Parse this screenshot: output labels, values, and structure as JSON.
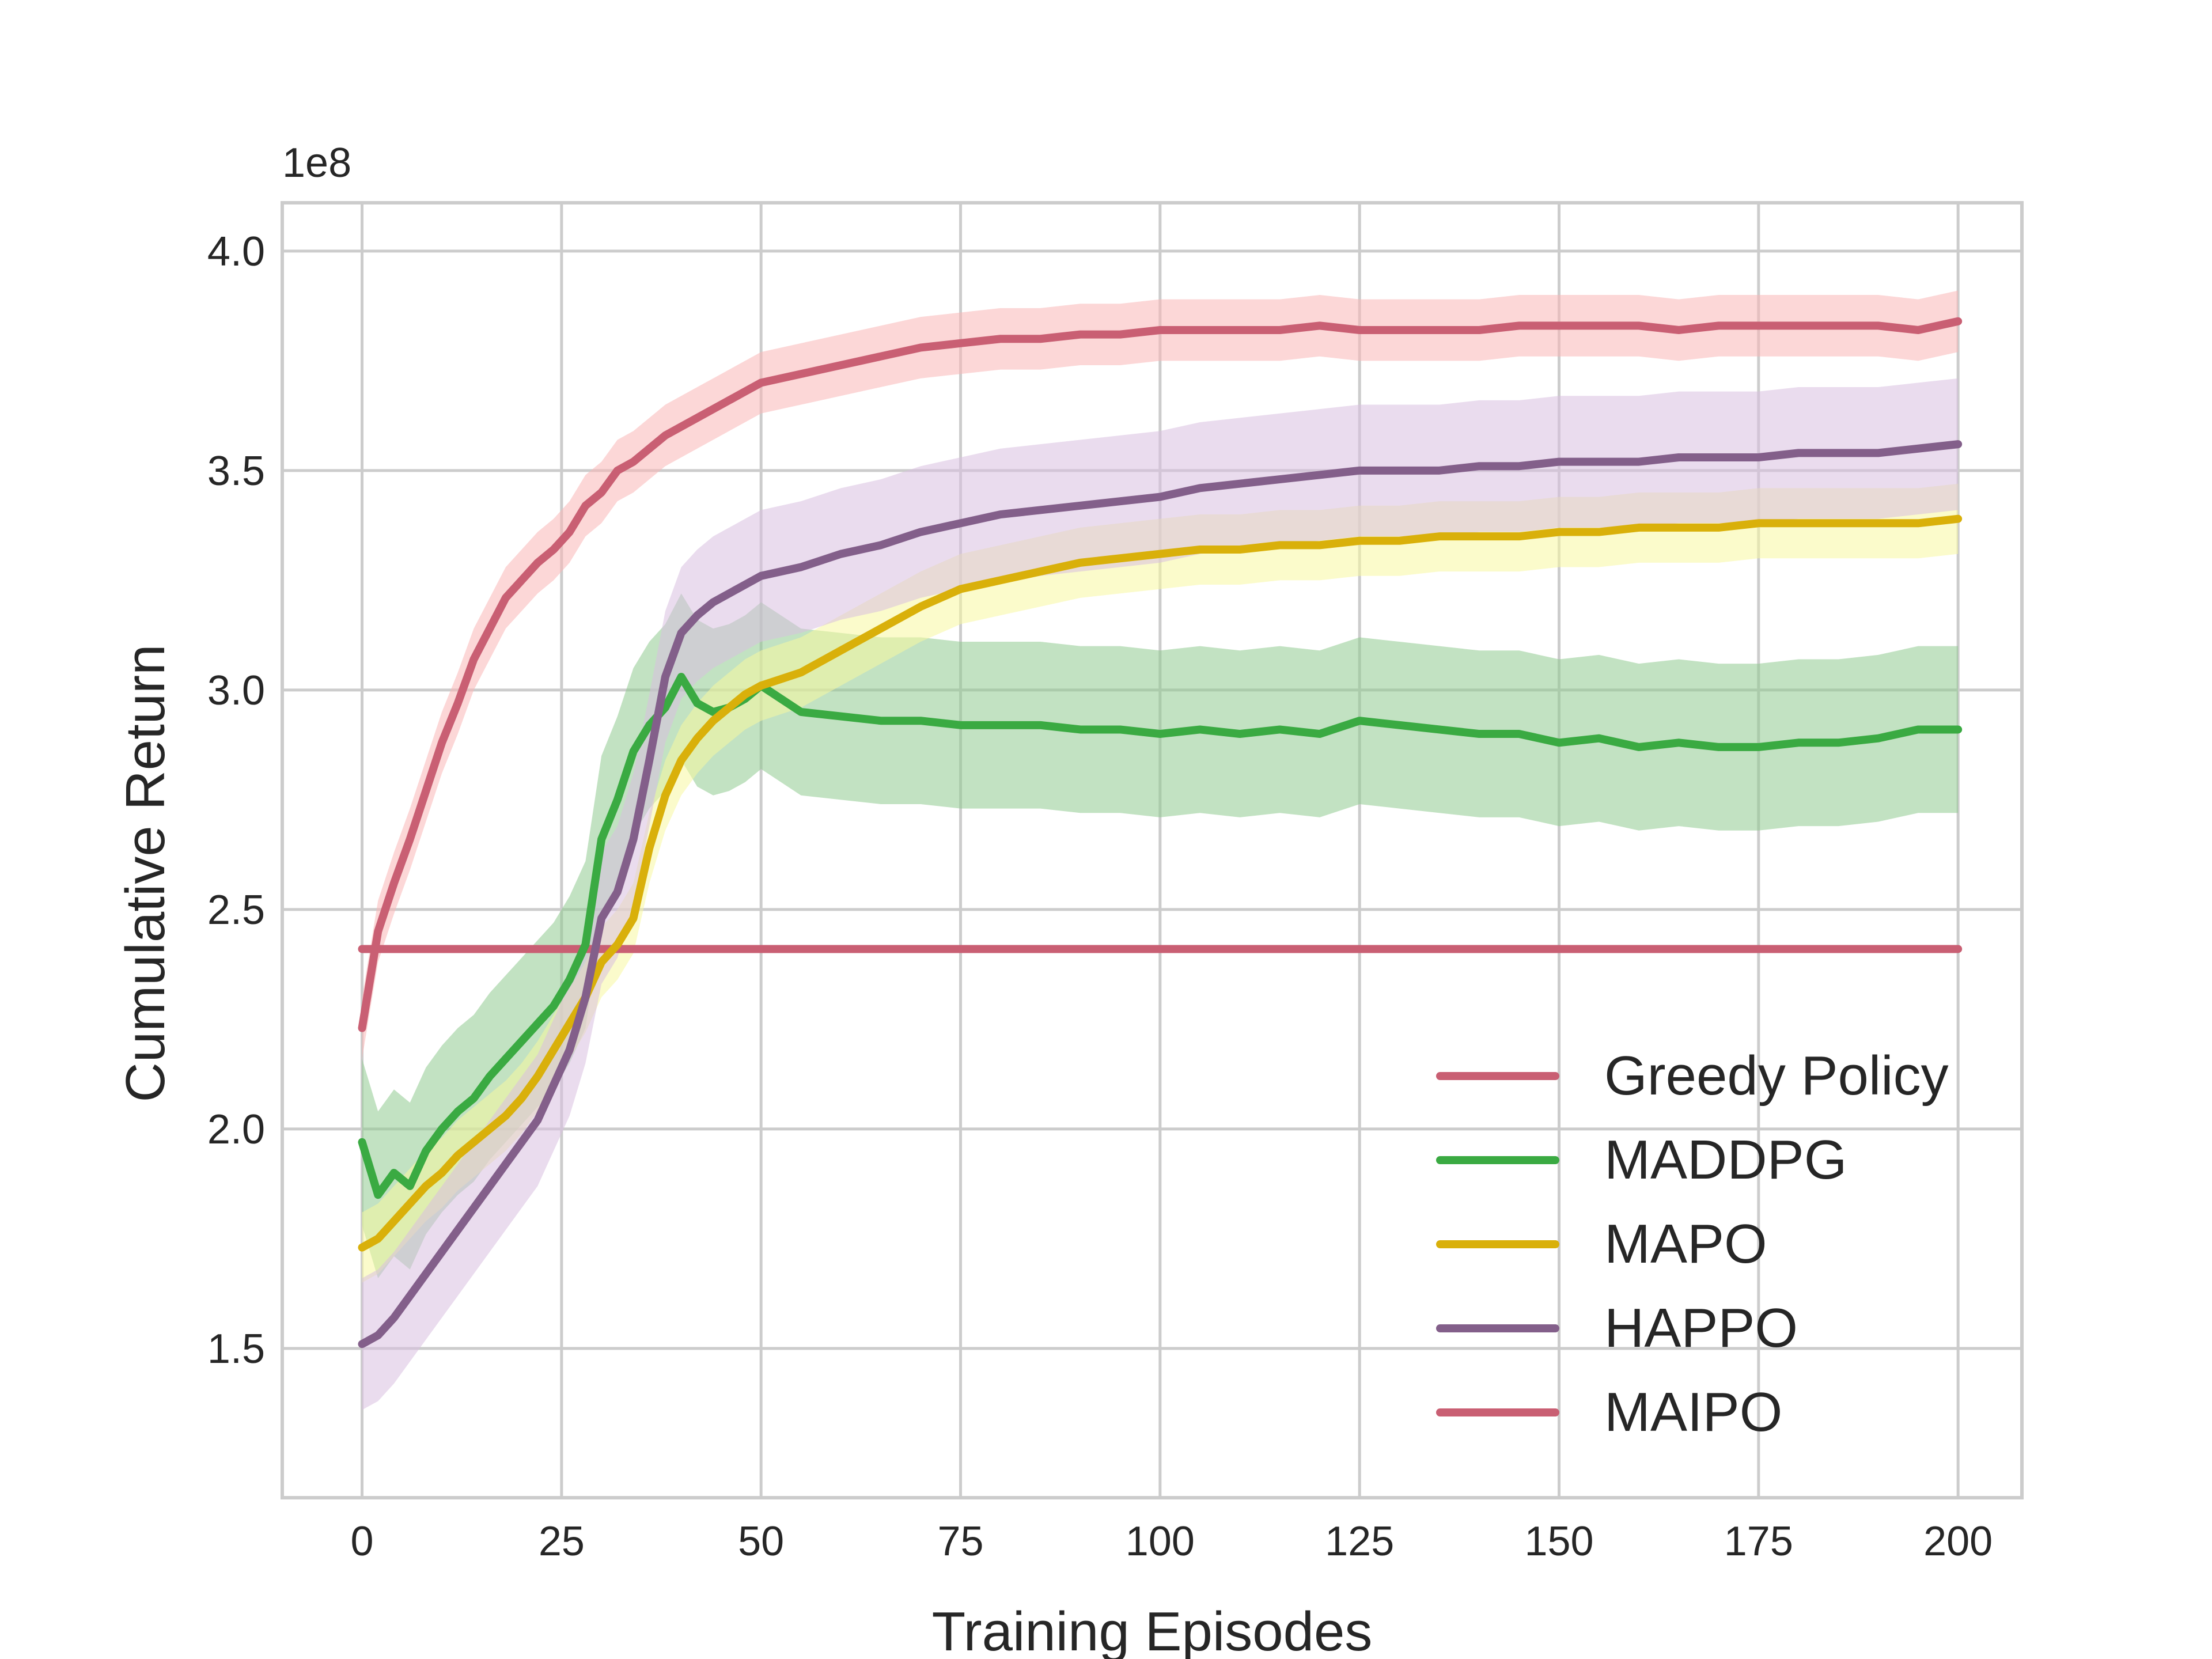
{
  "chart_data": {
    "type": "line",
    "xlabel": "Training Episodes",
    "ylabel": "Cumulative Return",
    "y_multiplier": "1e8",
    "xlim": [
      -10,
      208
    ],
    "ylim": [
      1.16,
      4.11
    ],
    "xticks": [
      0,
      25,
      50,
      75,
      100,
      125,
      150,
      175,
      200
    ],
    "yticks": [
      1.5,
      2.0,
      2.5,
      3.0,
      3.5,
      4.0
    ],
    "grid": true,
    "legend_position": "lower-right",
    "series": [
      {
        "name": "Greedy Policy",
        "color": "#c95f73",
        "constant": 2.41,
        "x": [
          0,
          200
        ],
        "values": [
          2.41,
          2.41
        ]
      },
      {
        "name": "MADDPG",
        "color": "#3aaa42",
        "band_color": "#8fca8f",
        "x": [
          0,
          2,
          4,
          6,
          8,
          10,
          12,
          14,
          16,
          18,
          20,
          22,
          24,
          26,
          28,
          30,
          32,
          34,
          36,
          38,
          40,
          42,
          44,
          46,
          48,
          50,
          55,
          60,
          65,
          70,
          75,
          80,
          85,
          90,
          95,
          100,
          105,
          110,
          115,
          120,
          125,
          130,
          135,
          140,
          145,
          150,
          155,
          160,
          165,
          170,
          175,
          180,
          185,
          190,
          195,
          200
        ],
        "values": [
          1.97,
          1.85,
          1.9,
          1.87,
          1.95,
          2.0,
          2.04,
          2.07,
          2.12,
          2.16,
          2.2,
          2.24,
          2.28,
          2.34,
          2.42,
          2.66,
          2.75,
          2.86,
          2.92,
          2.96,
          3.03,
          2.97,
          2.95,
          2.96,
          2.98,
          3.01,
          2.95,
          2.94,
          2.93,
          2.93,
          2.92,
          2.92,
          2.92,
          2.91,
          2.91,
          2.9,
          2.91,
          2.9,
          2.91,
          2.9,
          2.93,
          2.92,
          2.91,
          2.9,
          2.9,
          2.88,
          2.89,
          2.87,
          2.88,
          2.87,
          2.87,
          2.88,
          2.88,
          2.89,
          2.91,
          2.91
        ],
        "band_halfwidth": 0.19
      },
      {
        "name": "MAPO",
        "color": "#d9b00a",
        "band_color": "#f7f7a0",
        "x": [
          0,
          2,
          4,
          6,
          8,
          10,
          12,
          14,
          16,
          18,
          20,
          22,
          24,
          26,
          28,
          30,
          32,
          34,
          36,
          38,
          40,
          42,
          44,
          46,
          48,
          50,
          55,
          60,
          65,
          70,
          75,
          80,
          85,
          90,
          95,
          100,
          105,
          110,
          115,
          120,
          125,
          130,
          135,
          140,
          145,
          150,
          155,
          160,
          165,
          170,
          175,
          180,
          185,
          190,
          195,
          200
        ],
        "values": [
          1.73,
          1.75,
          1.79,
          1.83,
          1.87,
          1.9,
          1.94,
          1.97,
          2.0,
          2.03,
          2.07,
          2.12,
          2.18,
          2.24,
          2.3,
          2.38,
          2.42,
          2.48,
          2.64,
          2.76,
          2.84,
          2.89,
          2.93,
          2.96,
          2.99,
          3.01,
          3.04,
          3.09,
          3.14,
          3.19,
          3.23,
          3.25,
          3.27,
          3.29,
          3.3,
          3.31,
          3.32,
          3.32,
          3.33,
          3.33,
          3.34,
          3.34,
          3.35,
          3.35,
          3.35,
          3.36,
          3.36,
          3.37,
          3.37,
          3.37,
          3.38,
          3.38,
          3.38,
          3.38,
          3.38,
          3.39
        ],
        "band_halfwidth": 0.08
      },
      {
        "name": "HAPPO",
        "color": "#835f8a",
        "band_color": "#d9bfe0",
        "x": [
          0,
          2,
          4,
          6,
          8,
          10,
          12,
          14,
          16,
          18,
          20,
          22,
          24,
          26,
          28,
          30,
          32,
          34,
          36,
          38,
          40,
          42,
          44,
          46,
          48,
          50,
          55,
          60,
          65,
          70,
          75,
          80,
          85,
          90,
          95,
          100,
          105,
          110,
          115,
          120,
          125,
          130,
          135,
          140,
          145,
          150,
          155,
          160,
          165,
          170,
          175,
          180,
          185,
          190,
          195,
          200
        ],
        "values": [
          1.51,
          1.53,
          1.57,
          1.62,
          1.67,
          1.72,
          1.77,
          1.82,
          1.87,
          1.92,
          1.97,
          2.02,
          2.1,
          2.18,
          2.3,
          2.48,
          2.54,
          2.66,
          2.84,
          3.03,
          3.13,
          3.17,
          3.2,
          3.22,
          3.24,
          3.26,
          3.28,
          3.31,
          3.33,
          3.36,
          3.38,
          3.4,
          3.41,
          3.42,
          3.43,
          3.44,
          3.46,
          3.47,
          3.48,
          3.49,
          3.5,
          3.5,
          3.5,
          3.51,
          3.51,
          3.52,
          3.52,
          3.52,
          3.53,
          3.53,
          3.53,
          3.54,
          3.54,
          3.54,
          3.55,
          3.56
        ],
        "band_halfwidth": 0.15
      },
      {
        "name": "MAIPO",
        "color": "#c95f73",
        "band_color": "#f9b6b6",
        "x": [
          0,
          2,
          4,
          6,
          8,
          10,
          12,
          14,
          16,
          18,
          20,
          22,
          24,
          26,
          28,
          30,
          32,
          34,
          36,
          38,
          40,
          42,
          44,
          46,
          48,
          50,
          55,
          60,
          65,
          70,
          75,
          80,
          85,
          90,
          95,
          100,
          105,
          110,
          115,
          120,
          125,
          130,
          135,
          140,
          145,
          150,
          155,
          160,
          165,
          170,
          175,
          180,
          185,
          190,
          195,
          200
        ],
        "values": [
          2.23,
          2.45,
          2.56,
          2.66,
          2.77,
          2.88,
          2.97,
          3.07,
          3.14,
          3.21,
          3.25,
          3.29,
          3.32,
          3.36,
          3.42,
          3.45,
          3.5,
          3.52,
          3.55,
          3.58,
          3.6,
          3.62,
          3.64,
          3.66,
          3.68,
          3.7,
          3.72,
          3.74,
          3.76,
          3.78,
          3.79,
          3.8,
          3.8,
          3.81,
          3.81,
          3.82,
          3.82,
          3.82,
          3.82,
          3.83,
          3.82,
          3.82,
          3.82,
          3.82,
          3.83,
          3.83,
          3.83,
          3.83,
          3.82,
          3.83,
          3.83,
          3.83,
          3.83,
          3.83,
          3.82,
          3.84
        ],
        "band_halfwidth": 0.07
      }
    ]
  }
}
